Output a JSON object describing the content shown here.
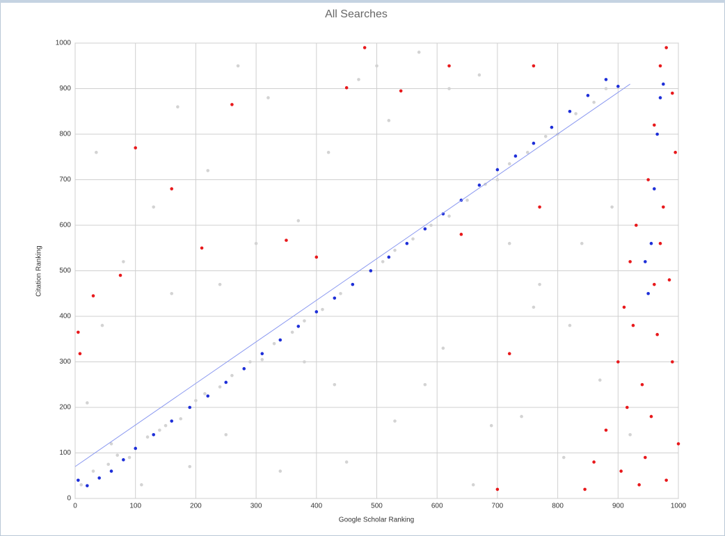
{
  "chart_data": {
    "type": "scatter",
    "title": "All Searches",
    "x_label": "Google Scholar Ranking",
    "y_label": "Citation Ranking",
    "xlim": [
      0,
      1000
    ],
    "ylim": [
      0,
      1000
    ],
    "xticks": [
      0,
      100,
      200,
      300,
      400,
      500,
      600,
      700,
      800,
      900,
      1000
    ],
    "yticks": [
      0,
      100,
      200,
      300,
      400,
      500,
      600,
      700,
      800,
      900,
      1000
    ],
    "grid": true,
    "series": [
      {
        "color": "#d3d3d3",
        "x": [
          10,
          30,
          55,
          70,
          90,
          120,
          140,
          150,
          175,
          200,
          215,
          240,
          260,
          290,
          310,
          330,
          360,
          380,
          410,
          440,
          460,
          490,
          510,
          530,
          560,
          590,
          620,
          650,
          680,
          700,
          720,
          750,
          780,
          800,
          830,
          860,
          880,
          20,
          45,
          80,
          130,
          170,
          220,
          270,
          320,
          370,
          420,
          470,
          520,
          570,
          620,
          670,
          720,
          770,
          820,
          870,
          60,
          110,
          190,
          250,
          340,
          430,
          530,
          610,
          690,
          760,
          840,
          920,
          35,
          160,
          300,
          450,
          580,
          740,
          890,
          240,
          380,
          500,
          660,
          810
        ],
        "values": [
          30,
          60,
          75,
          95,
          90,
          135,
          150,
          160,
          175,
          215,
          230,
          245,
          270,
          300,
          305,
          340,
          365,
          390,
          415,
          450,
          470,
          500,
          520,
          545,
          570,
          600,
          620,
          655,
          690,
          700,
          735,
          760,
          795,
          800,
          845,
          870,
          900,
          210,
          380,
          520,
          640,
          860,
          720,
          950,
          880,
          610,
          760,
          920,
          830,
          980,
          900,
          930,
          560,
          470,
          380,
          260,
          120,
          30,
          70,
          140,
          60,
          250,
          170,
          330,
          160,
          420,
          560,
          140,
          760,
          450,
          560,
          80,
          250,
          180,
          640,
          470,
          300,
          950,
          30,
          90
        ],
        "mode": "points"
      },
      {
        "color": "#1e2fd8",
        "x": [
          5,
          20,
          40,
          60,
          80,
          100,
          130,
          160,
          190,
          220,
          250,
          280,
          310,
          340,
          370,
          400,
          430,
          460,
          490,
          520,
          550,
          580,
          610,
          640,
          670,
          700,
          730,
          760,
          790,
          820,
          850,
          880,
          900,
          950,
          955,
          960,
          965,
          970,
          975,
          945
        ],
        "values": [
          40,
          28,
          45,
          60,
          85,
          110,
          140,
          170,
          200,
          225,
          255,
          285,
          318,
          348,
          378,
          410,
          440,
          470,
          500,
          530,
          560,
          592,
          625,
          655,
          688,
          722,
          752,
          780,
          815,
          850,
          885,
          920,
          905,
          450,
          560,
          680,
          800,
          880,
          910,
          520
        ],
        "mode": "points"
      },
      {
        "color": "#e8191c",
        "x": [
          845,
          860,
          880,
          900,
          910,
          920,
          930,
          940,
          950,
          960,
          970,
          980,
          990,
          995,
          975,
          985,
          965,
          955,
          945,
          935,
          925,
          915,
          905,
          990,
          1000,
          980,
          970,
          960,
          5,
          8,
          75,
          100,
          160,
          260,
          400,
          480,
          540,
          620,
          760,
          640,
          700,
          720,
          770,
          30,
          210,
          350,
          450
        ],
        "values": [
          20,
          80,
          150,
          300,
          420,
          520,
          600,
          250,
          700,
          820,
          950,
          990,
          890,
          760,
          640,
          480,
          360,
          180,
          90,
          30,
          380,
          200,
          60,
          300,
          120,
          40,
          560,
          470,
          365,
          318,
          490,
          770,
          680,
          865,
          530,
          990,
          895,
          950,
          950,
          580,
          20,
          318,
          640,
          445,
          550,
          567,
          902
        ],
        "mode": "points"
      },
      {
        "color": "#8a98f0",
        "x": [
          0,
          920
        ],
        "values": [
          70,
          910
        ],
        "mode": "line"
      }
    ]
  }
}
